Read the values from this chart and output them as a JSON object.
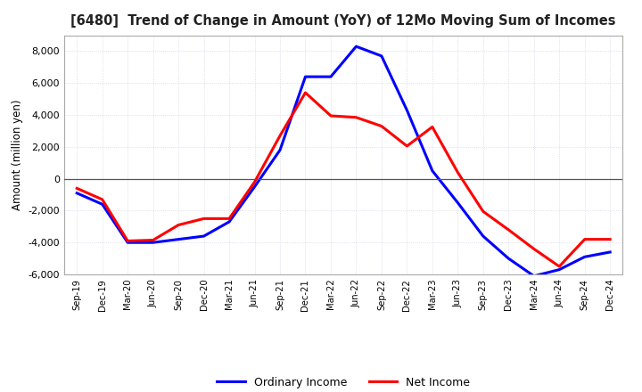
{
  "title": "[6480]  Trend of Change in Amount (YoY) of 12Mo Moving Sum of Incomes",
  "ylabel": "Amount (million yen)",
  "background_color": "#ffffff",
  "plot_bg_color": "#ffffff",
  "x_labels": [
    "Sep-19",
    "Dec-19",
    "Mar-20",
    "Jun-20",
    "Sep-20",
    "Dec-20",
    "Mar-21",
    "Jun-21",
    "Sep-21",
    "Dec-21",
    "Mar-22",
    "Jun-22",
    "Sep-22",
    "Dec-22",
    "Mar-23",
    "Jun-23",
    "Sep-23",
    "Dec-23",
    "Mar-24",
    "Jun-24",
    "Sep-24",
    "Dec-24"
  ],
  "ordinary_income": [
    -900,
    -1600,
    -4000,
    -4000,
    -3800,
    -3600,
    -2700,
    -500,
    1800,
    6400,
    6400,
    8300,
    7700,
    4300,
    500,
    -1500,
    -3600,
    -5000,
    -6100,
    -5700,
    -4900,
    -4600
  ],
  "net_income": [
    -600,
    -1300,
    -3900,
    -3850,
    -2900,
    -2500,
    -2500,
    -200,
    2700,
    5400,
    3950,
    3850,
    3300,
    2050,
    3250,
    400,
    -2050,
    -3200,
    -4400,
    -5500,
    -3800,
    -3800
  ],
  "ordinary_color": "#0000ff",
  "net_color": "#ff0000",
  "ylim": [
    -6000,
    9000
  ],
  "yticks": [
    -6000,
    -4000,
    -2000,
    0,
    2000,
    4000,
    6000,
    8000
  ],
  "line_width": 2.2,
  "legend_labels": [
    "Ordinary Income",
    "Net Income"
  ],
  "grid_color": "#aaaacc",
  "grid_alpha": 0.5
}
